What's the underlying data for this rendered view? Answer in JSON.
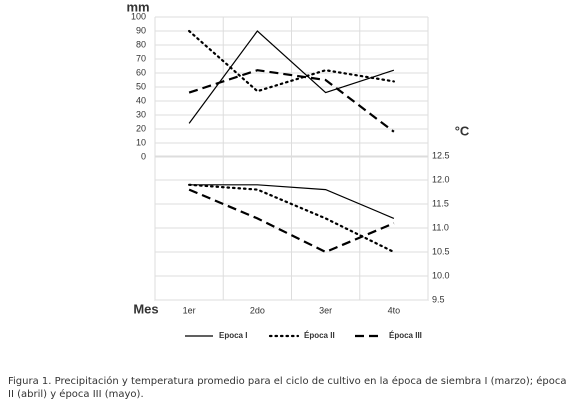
{
  "chart_data": [
    {
      "type": "line",
      "ylabel": "mm",
      "ylim": [
        0,
        100
      ],
      "yticks": [
        0,
        10,
        20,
        30,
        40,
        50,
        60,
        70,
        80,
        90,
        100
      ],
      "grid": true,
      "series": [
        {
          "name": "Epoca I",
          "color": "#000000",
          "dash": "solid",
          "values": [
            24,
            90,
            46,
            62
          ]
        },
        {
          "name": "Época II",
          "color": "#000000",
          "dash": "dotted",
          "values": [
            90,
            47,
            62,
            54
          ]
        },
        {
          "name": "Época III",
          "color": "#000000",
          "dash": "dashed",
          "values": [
            46,
            62,
            55,
            18
          ]
        }
      ]
    },
    {
      "type": "line",
      "ylabel": "°C",
      "xlabel": "Mes",
      "categories": [
        "1er",
        "2do",
        "3er",
        "4to"
      ],
      "ylim": [
        9.5,
        12.5
      ],
      "yticks": [
        {
          "value": 9.5,
          "label": "9.5"
        },
        {
          "value": 10,
          "label": "10.0"
        },
        {
          "value": 10.5,
          "label": "10.5"
        },
        {
          "value": 11,
          "label": "11.0"
        },
        {
          "value": 11.5,
          "label": "11.5"
        },
        {
          "value": 12,
          "label": "12.0"
        },
        {
          "value": 12.5,
          "label": "12.5"
        }
      ],
      "grid": true,
      "series": [
        {
          "color": "#000000",
          "dash": "solid",
          "values": [
            11.9,
            11.9,
            11.8,
            11.2
          ]
        },
        {
          "color": "#000000",
          "dash": "dotted",
          "values": [
            11.9,
            11.8,
            11.2,
            10.5
          ]
        },
        {
          "color": "#000000",
          "dash": "dashed",
          "values": [
            11.8,
            11.2,
            10.5,
            11.1
          ]
        }
      ]
    }
  ],
  "caption": "Figura 1. Precipitación y temperatura promedio para el ciclo de cultivo en la época de siembra I (marzo); época II (abril) y época III (mayo)."
}
